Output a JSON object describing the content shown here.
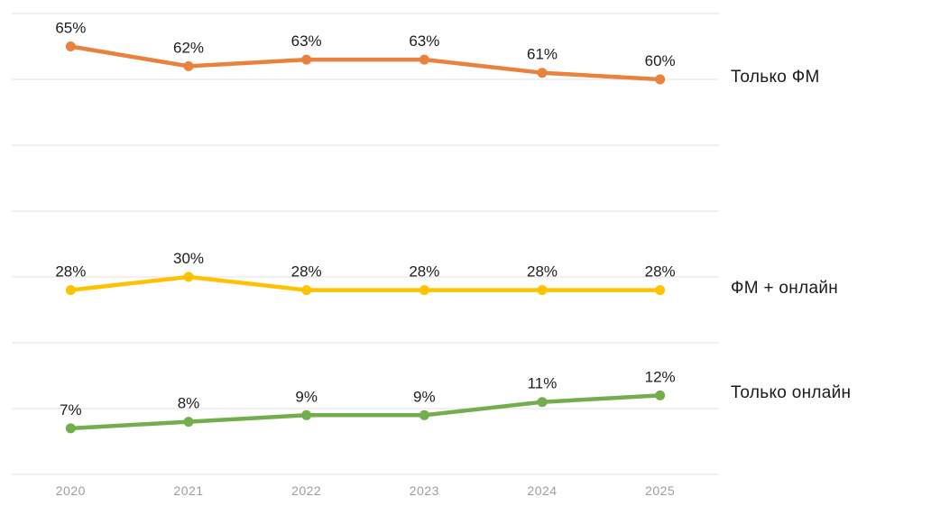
{
  "chart_data": {
    "type": "line",
    "title": "",
    "xlabel": "",
    "ylabel": "",
    "categories": [
      "2020",
      "2021",
      "2022",
      "2023",
      "2024",
      "2025"
    ],
    "series": [
      {
        "name": "Только ФМ",
        "values": [
          65,
          62,
          63,
          63,
          61,
          60
        ],
        "color": "#E8823C"
      },
      {
        "name": "ФМ + онлайн",
        "values": [
          28,
          30,
          28,
          28,
          28,
          28
        ],
        "color": "#FEC200"
      },
      {
        "name": "Только онлайн",
        "values": [
          7,
          8,
          9,
          9,
          11,
          12
        ],
        "color": "#73AD4C"
      }
    ],
    "data_labels": [
      [
        "65%",
        "62%",
        "63%",
        "63%",
        "61%",
        "60%"
      ],
      [
        "28%",
        "30%",
        "28%",
        "28%",
        "28%",
        "28%"
      ],
      [
        "7%",
        "8%",
        "9%",
        "9%",
        "11%",
        "12%"
      ]
    ],
    "ylim": [
      0,
      70
    ],
    "grid_step": 10,
    "grid": true,
    "legend_position": "right"
  },
  "colors": {
    "gridline": "#E1E1E1",
    "value_label": "#1D1D1D",
    "axis_tick_label": "#9E9E9E",
    "series_label": "#1B1B1B",
    "background": "#FFFFFF"
  }
}
